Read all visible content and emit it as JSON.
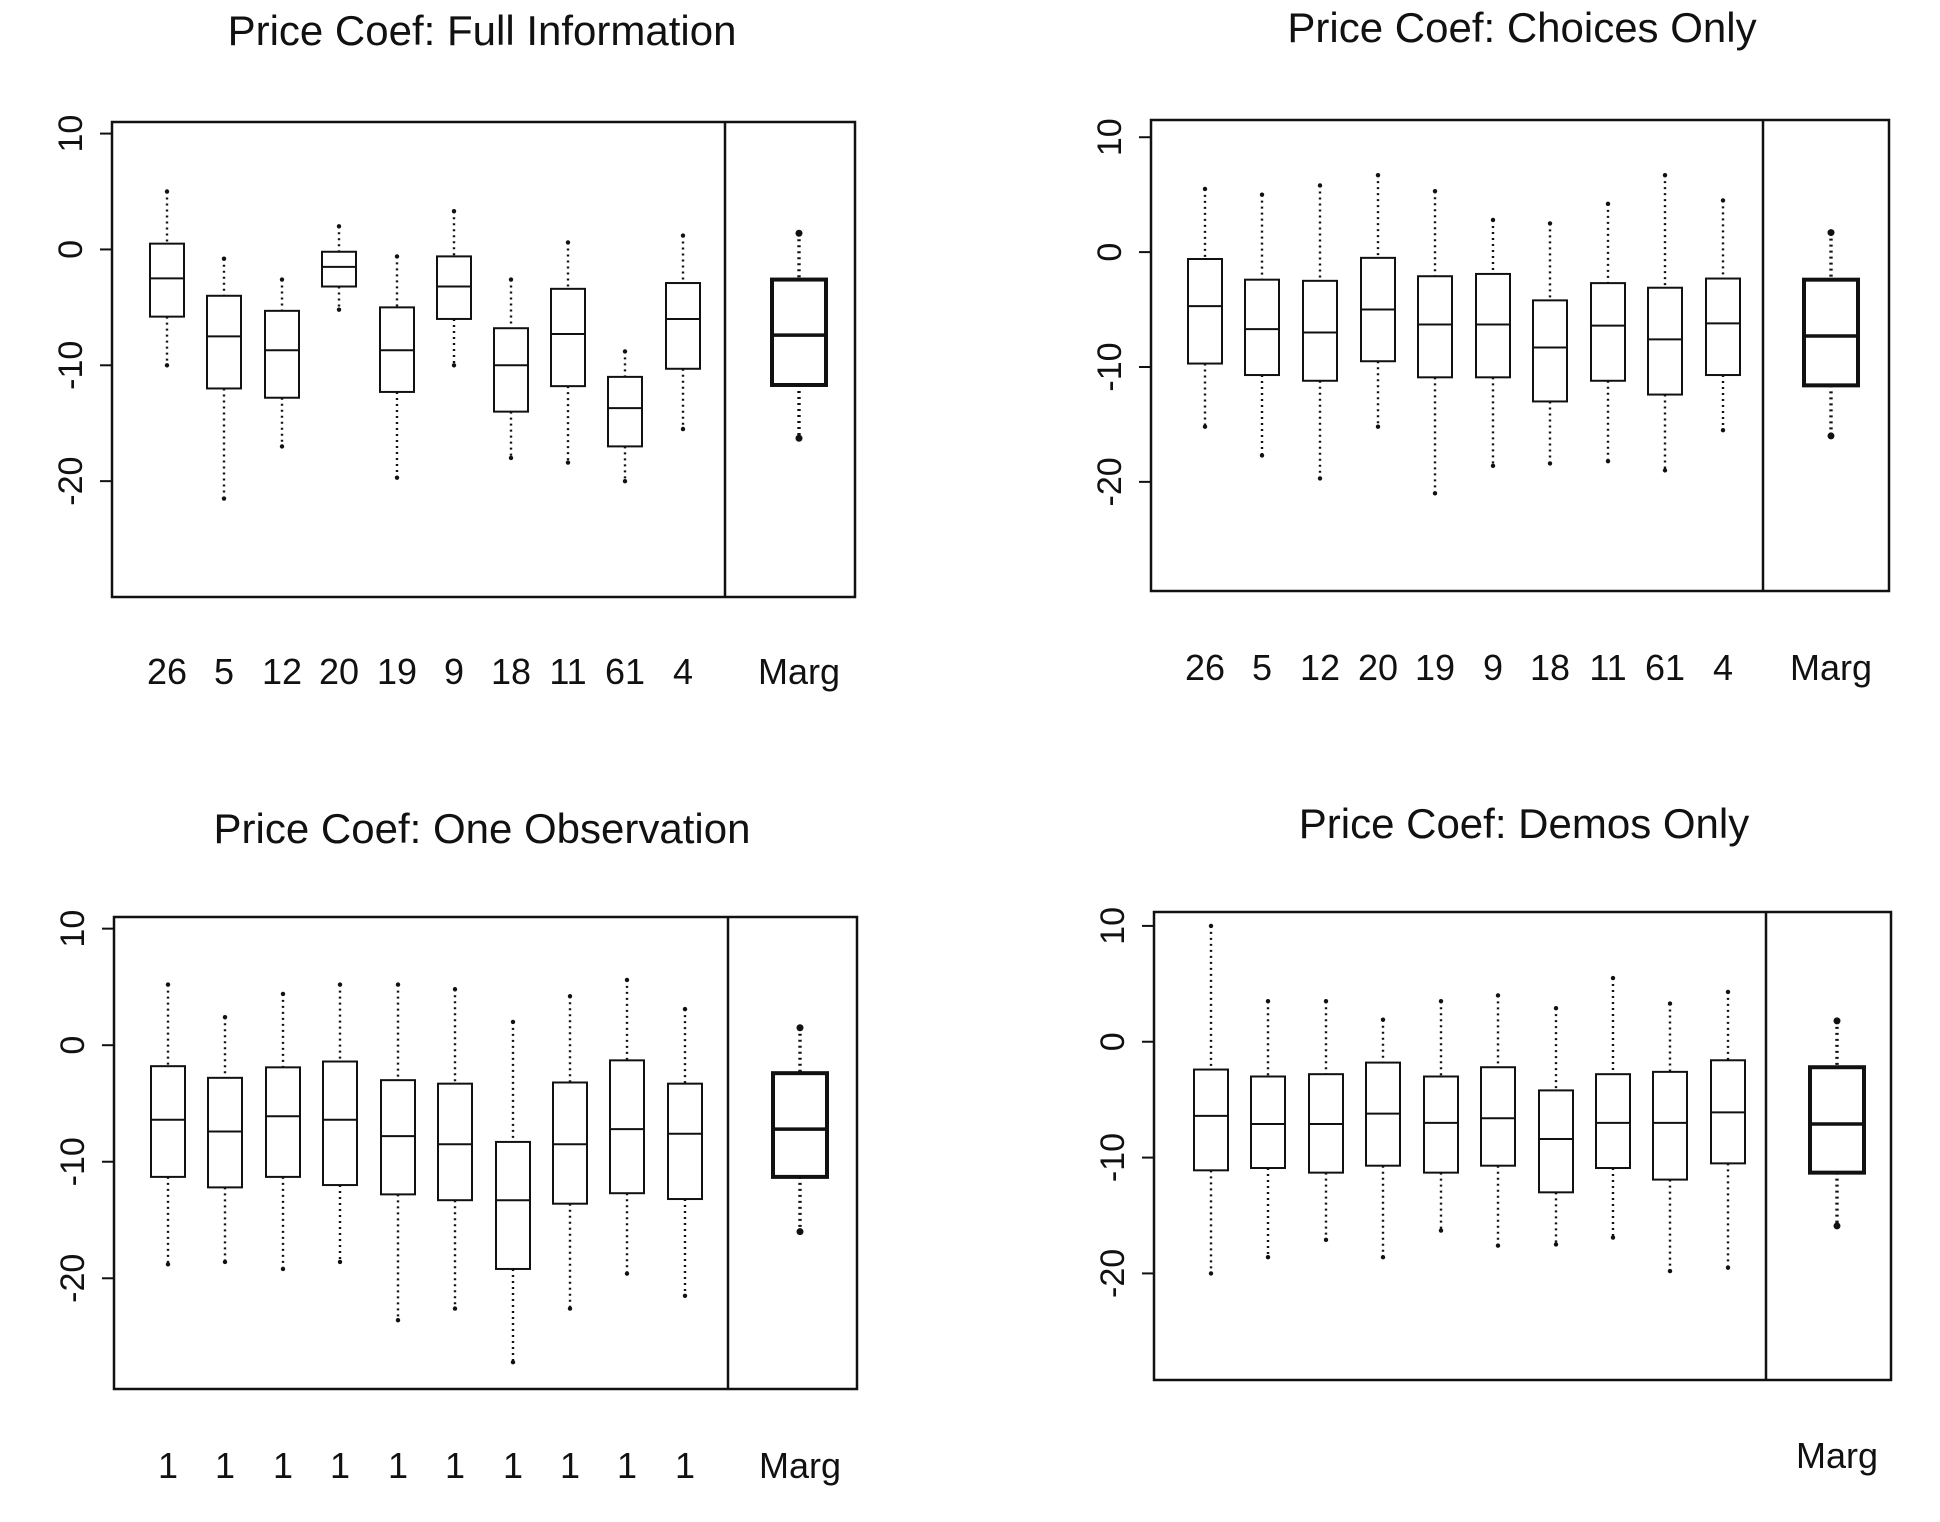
{
  "chart_data": [
    {
      "type": "box",
      "title": "Price Coef: Full Information",
      "xlabel": "",
      "ylabel": "",
      "ylim": [
        -30,
        11
      ],
      "yticks": [
        "10",
        "0",
        "-10",
        "-20"
      ],
      "categories": [
        "26",
        "5",
        "12",
        "20",
        "19",
        "9",
        "18",
        "11",
        "61",
        "4",
        "Marg"
      ],
      "boxes": [
        {
          "lower": -10,
          "q1": -5.8,
          "median": -2.5,
          "q3": 0.5,
          "upper": 5
        },
        {
          "lower": -21.5,
          "q1": -12,
          "median": -7.5,
          "q3": -4,
          "upper": -0.8
        },
        {
          "lower": -17,
          "q1": -12.8,
          "median": -8.7,
          "q3": -5.3,
          "upper": -2.6
        },
        {
          "lower": -5.2,
          "q1": -3.2,
          "median": -1.5,
          "q3": -0.2,
          "upper": 2
        },
        {
          "lower": -19.7,
          "q1": -12.3,
          "median": -8.7,
          "q3": -5,
          "upper": -0.6
        },
        {
          "lower": -10,
          "q1": -6,
          "median": -3.2,
          "q3": -0.6,
          "upper": 3.3
        },
        {
          "lower": -18,
          "q1": -14,
          "median": -10,
          "q3": -6.8,
          "upper": -2.6
        },
        {
          "lower": -18.4,
          "q1": -11.8,
          "median": -7.3,
          "q3": -3.4,
          "upper": 0.6
        },
        {
          "lower": -20,
          "q1": -17,
          "median": -13.7,
          "q3": -11,
          "upper": -8.8
        },
        {
          "lower": -15.5,
          "q1": -10.3,
          "median": -6,
          "q3": -2.9,
          "upper": 1.2
        },
        {
          "lower": -16.3,
          "q1": -11.7,
          "median": -7.4,
          "q3": -2.6,
          "upper": 1.4
        }
      ]
    },
    {
      "type": "box",
      "title": "Price Coef: Choices Only",
      "xlabel": "",
      "ylabel": "",
      "ylim": [
        -29.5,
        11.5
      ],
      "yticks": [
        "10",
        "0",
        "-10",
        "-20"
      ],
      "categories": [
        "26",
        "5",
        "12",
        "20",
        "19",
        "9",
        "18",
        "11",
        "61",
        "4",
        "Marg"
      ],
      "boxes": [
        {
          "lower": -15.2,
          "q1": -9.7,
          "median": -4.7,
          "q3": -0.6,
          "upper": 5.5
        },
        {
          "lower": -17.7,
          "q1": -10.7,
          "median": -6.7,
          "q3": -2.4,
          "upper": 5
        },
        {
          "lower": -19.7,
          "q1": -11.2,
          "median": -7,
          "q3": -2.5,
          "upper": 5.8
        },
        {
          "lower": -15.2,
          "q1": -9.5,
          "median": -5,
          "q3": -0.5,
          "upper": 6.7
        },
        {
          "lower": -21,
          "q1": -10.9,
          "median": -6.3,
          "q3": -2.1,
          "upper": 5.3
        },
        {
          "lower": -18.6,
          "q1": -10.9,
          "median": -6.3,
          "q3": -1.9,
          "upper": 2.8
        },
        {
          "lower": -18.4,
          "q1": -13,
          "median": -8.3,
          "q3": -4.2,
          "upper": 2.5
        },
        {
          "lower": -18.2,
          "q1": -11.2,
          "median": -6.4,
          "q3": -2.7,
          "upper": 4.2
        },
        {
          "lower": -19,
          "q1": -12.4,
          "median": -7.6,
          "q3": -3.1,
          "upper": 6.7
        },
        {
          "lower": -15.5,
          "q1": -10.7,
          "median": -6.2,
          "q3": -2.3,
          "upper": 4.5
        },
        {
          "lower": -16,
          "q1": -11.6,
          "median": -7.3,
          "q3": -2.4,
          "upper": 1.7
        }
      ]
    },
    {
      "type": "box",
      "title": "Price Coef: One Observation",
      "xlabel": "",
      "ylabel": "",
      "ylim": [
        -29.5,
        11
      ],
      "yticks": [
        "10",
        "0",
        "-10",
        "-20"
      ],
      "categories": [
        "1",
        "1",
        "1",
        "1",
        "1",
        "1",
        "1",
        "1",
        "1",
        "1",
        "Marg"
      ],
      "boxes": [
        {
          "lower": -18.8,
          "q1": -11.3,
          "median": -6.4,
          "q3": -1.8,
          "upper": 5.2
        },
        {
          "lower": -18.6,
          "q1": -12.2,
          "median": -7.4,
          "q3": -2.8,
          "upper": 2.4
        },
        {
          "lower": -19.2,
          "q1": -11.3,
          "median": -6.1,
          "q3": -1.9,
          "upper": 4.4
        },
        {
          "lower": -18.6,
          "q1": -12,
          "median": -6.4,
          "q3": -1.4,
          "upper": 5.2
        },
        {
          "lower": -23.6,
          "q1": -12.8,
          "median": -7.8,
          "q3": -3,
          "upper": 5.2
        },
        {
          "lower": -22.6,
          "q1": -13.3,
          "median": -8.5,
          "q3": -3.3,
          "upper": 4.8
        },
        {
          "lower": -27.2,
          "q1": -19.2,
          "median": -13.3,
          "q3": -8.3,
          "upper": 2
        },
        {
          "lower": -22.6,
          "q1": -13.6,
          "median": -8.5,
          "q3": -3.2,
          "upper": 4.2
        },
        {
          "lower": -19.6,
          "q1": -12.7,
          "median": -7.2,
          "q3": -1.3,
          "upper": 5.6
        },
        {
          "lower": -21.5,
          "q1": -13.2,
          "median": -7.6,
          "q3": -3.3,
          "upper": 3.1
        },
        {
          "lower": -16,
          "q1": -11.3,
          "median": -7.2,
          "q3": -2.4,
          "upper": 1.5
        }
      ]
    },
    {
      "type": "box",
      "title": "Price Coef: Demos Only",
      "xlabel": "",
      "ylabel": "",
      "ylim": [
        -29.2,
        11.2
      ],
      "yticks": [
        "10",
        "0",
        "-10",
        "-20"
      ],
      "categories": [
        "",
        "",
        "",
        "",
        "",
        "",
        "",
        "",
        "",
        "",
        "Marg"
      ],
      "boxes": [
        {
          "lower": -20,
          "q1": -11.1,
          "median": -6.4,
          "q3": -2.4,
          "upper": 10
        },
        {
          "lower": -18.6,
          "q1": -10.9,
          "median": -7.1,
          "q3": -3,
          "upper": 3.5
        },
        {
          "lower": -17.1,
          "q1": -11.3,
          "median": -7.1,
          "q3": -2.8,
          "upper": 3.5
        },
        {
          "lower": -18.6,
          "q1": -10.7,
          "median": -6.2,
          "q3": -1.8,
          "upper": 1.9
        },
        {
          "lower": -16.3,
          "q1": -11.3,
          "median": -7,
          "q3": -3,
          "upper": 3.5
        },
        {
          "lower": -17.6,
          "q1": -10.7,
          "median": -6.6,
          "q3": -2.2,
          "upper": 4
        },
        {
          "lower": -17.5,
          "q1": -13,
          "median": -8.4,
          "q3": -4.2,
          "upper": 2.9
        },
        {
          "lower": -16.9,
          "q1": -10.9,
          "median": -7,
          "q3": -2.8,
          "upper": 5.5
        },
        {
          "lower": -19.8,
          "q1": -11.9,
          "median": -7,
          "q3": -2.6,
          "upper": 3.3
        },
        {
          "lower": -19.5,
          "q1": -10.5,
          "median": -6.1,
          "q3": -1.6,
          "upper": 4.3
        },
        {
          "lower": -15.9,
          "q1": -11.3,
          "median": -7.1,
          "q3": -2.2,
          "upper": 1.8
        }
      ]
    }
  ]
}
